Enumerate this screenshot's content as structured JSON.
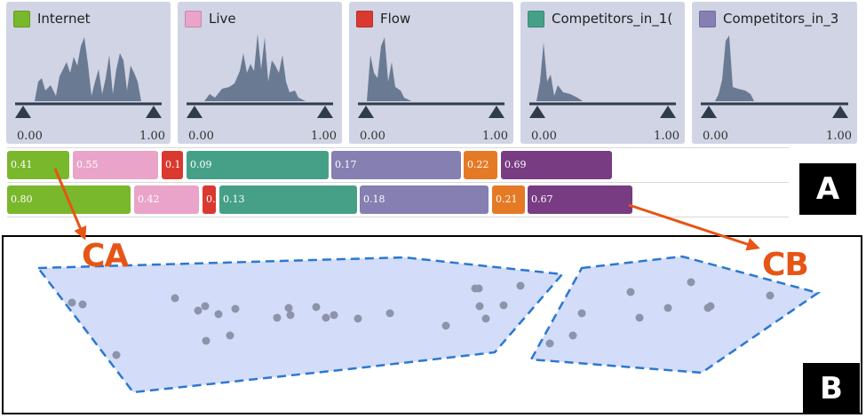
{
  "colors": {
    "panel_bg": "#d0d4e4",
    "histogram": "#6b7a93",
    "slider": "#2f3c4c",
    "cluster_fill": "#d3dcf8",
    "cluster_stroke": "#2b78d0",
    "point": "#8d94aa",
    "arrow": "#e65416"
  },
  "attributes": [
    {
      "name": "Internet",
      "color": "#79b72c",
      "min": "0.00",
      "max": "1.00"
    },
    {
      "name": "Live",
      "color": "#eaa3c9",
      "min": "0.00",
      "max": "1.00"
    },
    {
      "name": "Flow",
      "color": "#d9392f",
      "min": "0.00",
      "max": "1.00"
    },
    {
      "name": "Competitors_in_1(",
      "color": "#46a087",
      "min": "0.00",
      "max": "1.00"
    },
    {
      "name": "Competitors_in_3",
      "color": "#857fb2",
      "min": "0.00",
      "max": "1.00"
    }
  ],
  "bar_rows": [
    {
      "segments": [
        {
          "label": "0.41",
          "color": "#79b72c"
        },
        {
          "label": "0.55",
          "color": "#eaa3c9"
        },
        {
          "label": "0.1",
          "color": "#d9392f"
        },
        {
          "label": "0.09",
          "color": "#46a087"
        },
        {
          "label": "0.17",
          "color": "#857fb2"
        },
        {
          "label": "0.22",
          "color": "#e57a26"
        },
        {
          "label": "0.69",
          "color": "#773c82"
        }
      ]
    },
    {
      "segments": [
        {
          "label": "0.80",
          "color": "#79b72c"
        },
        {
          "label": "0.42",
          "color": "#eaa3c9"
        },
        {
          "label": "0.",
          "color": "#d9392f"
        },
        {
          "label": "0.13",
          "color": "#46a087"
        },
        {
          "label": "0.18",
          "color": "#857fb2"
        },
        {
          "label": "0.21",
          "color": "#e57a26"
        },
        {
          "label": "0.67",
          "color": "#773c82"
        }
      ]
    }
  ],
  "labels": {
    "a": "A",
    "b": "B",
    "ca": "CA",
    "cb": "CB"
  }
}
